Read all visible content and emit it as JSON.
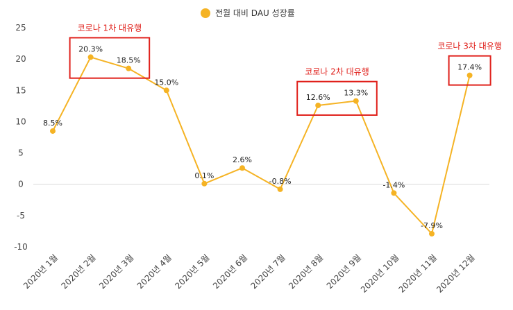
{
  "chart_data": {
    "type": "line",
    "title": "",
    "xlabel": "",
    "ylabel": "",
    "ylim": [
      -10,
      25
    ],
    "yticks": [
      25,
      20,
      15,
      10,
      5,
      0,
      -5,
      -10
    ],
    "grid": false,
    "legend_position": "top-center",
    "categories": [
      "2020년 1월",
      "2020년 2월",
      "2020년 3월",
      "2020년 4월",
      "2020년 5월",
      "2020년 6월",
      "2020년 7월",
      "2020년 8월",
      "2020년 9월",
      "2020년 10월",
      "2020년 11월",
      "2020년 12월"
    ],
    "series": [
      {
        "name": "전월 대비 DAU 성장률",
        "values": [
          8.5,
          20.3,
          18.5,
          15.0,
          0.1,
          2.6,
          -0.8,
          12.6,
          13.3,
          -1.4,
          -7.9,
          17.4
        ],
        "labels": [
          "8.5%",
          "20.3%",
          "18.5%",
          "15.0%",
          "0.1%",
          "2.6%",
          "-0.8%",
          "12.6%",
          "13.3%",
          "-1.4%",
          "-7.9%",
          "17.4%"
        ],
        "color": "#f5b324"
      }
    ],
    "annotations": [
      {
        "text": "코로나 1차 대유행",
        "covers": [
          1,
          2
        ],
        "color": "#e0201b"
      },
      {
        "text": "코로나 2차 대유행",
        "covers": [
          7,
          8
        ],
        "color": "#e0201b"
      },
      {
        "text": "코로나 3차 대유행",
        "covers": [
          11,
          11
        ],
        "color": "#e0201b"
      }
    ]
  }
}
